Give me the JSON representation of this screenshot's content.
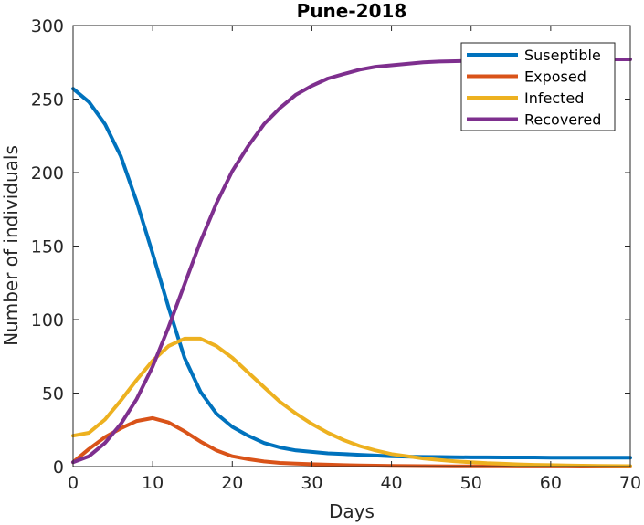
{
  "chart_data": {
    "type": "line",
    "title": "Pune-2018",
    "xlabel": "Days",
    "ylabel": "Number of individuals",
    "xlim": [
      0,
      70
    ],
    "ylim": [
      0,
      300
    ],
    "xticks": [
      0,
      10,
      20,
      30,
      40,
      50,
      60,
      70
    ],
    "yticks": [
      0,
      50,
      100,
      150,
      200,
      250,
      300
    ],
    "grid": false,
    "legend_position": "top-right",
    "x": [
      0,
      2,
      4,
      6,
      8,
      10,
      12,
      14,
      16,
      18,
      20,
      22,
      24,
      26,
      28,
      30,
      32,
      34,
      36,
      38,
      40,
      42,
      44,
      46,
      48,
      50,
      52,
      54,
      56,
      58,
      60,
      62,
      64,
      66,
      68,
      70
    ],
    "series": [
      {
        "name": "Suseptible",
        "color": "#0072BD",
        "values": [
          257,
          248,
          233,
          211,
          180,
          145,
          108,
          74,
          51,
          36,
          27,
          21,
          16,
          13,
          11,
          10,
          9,
          8.5,
          8,
          7.5,
          7,
          6.8,
          6.6,
          6.5,
          6.4,
          6.3,
          6.3,
          6.2,
          6.2,
          6.2,
          6.1,
          6.1,
          6.1,
          6.1,
          6.1,
          6.1
        ]
      },
      {
        "name": "Exposed",
        "color": "#D95319",
        "values": [
          3,
          12,
          20,
          26,
          31,
          33,
          30,
          24,
          17,
          11,
          7,
          5,
          3.5,
          2.5,
          2,
          1.6,
          1.3,
          1,
          0.8,
          0.6,
          0.5,
          0.4,
          0.3,
          0.25,
          0.2,
          0.15,
          0.12,
          0.1,
          0.08,
          0.06,
          0.05,
          0.04,
          0.03,
          0.02,
          0.02,
          0.01
        ]
      },
      {
        "name": "Infected",
        "color": "#EDB120",
        "values": [
          21,
          23,
          32,
          45,
          59,
          72,
          82,
          87,
          87,
          82,
          74,
          64,
          54,
          44,
          36,
          29,
          23,
          18,
          14,
          11,
          8.5,
          7,
          5.5,
          4.5,
          3.6,
          2.9,
          2.3,
          1.9,
          1.5,
          1.2,
          1,
          0.8,
          0.6,
          0.5,
          0.4,
          0.3
        ]
      },
      {
        "name": "Recovered",
        "color": "#7E2F8E",
        "values": [
          3,
          7,
          16,
          29,
          46,
          68,
          95,
          124,
          153,
          179,
          201,
          218,
          233,
          244,
          253,
          259,
          264,
          267,
          270,
          272,
          273,
          274,
          275,
          275.5,
          275.8,
          276,
          276.2,
          276.4,
          276.5,
          276.6,
          276.7,
          276.8,
          276.9,
          276.9,
          277,
          277
        ]
      }
    ]
  }
}
